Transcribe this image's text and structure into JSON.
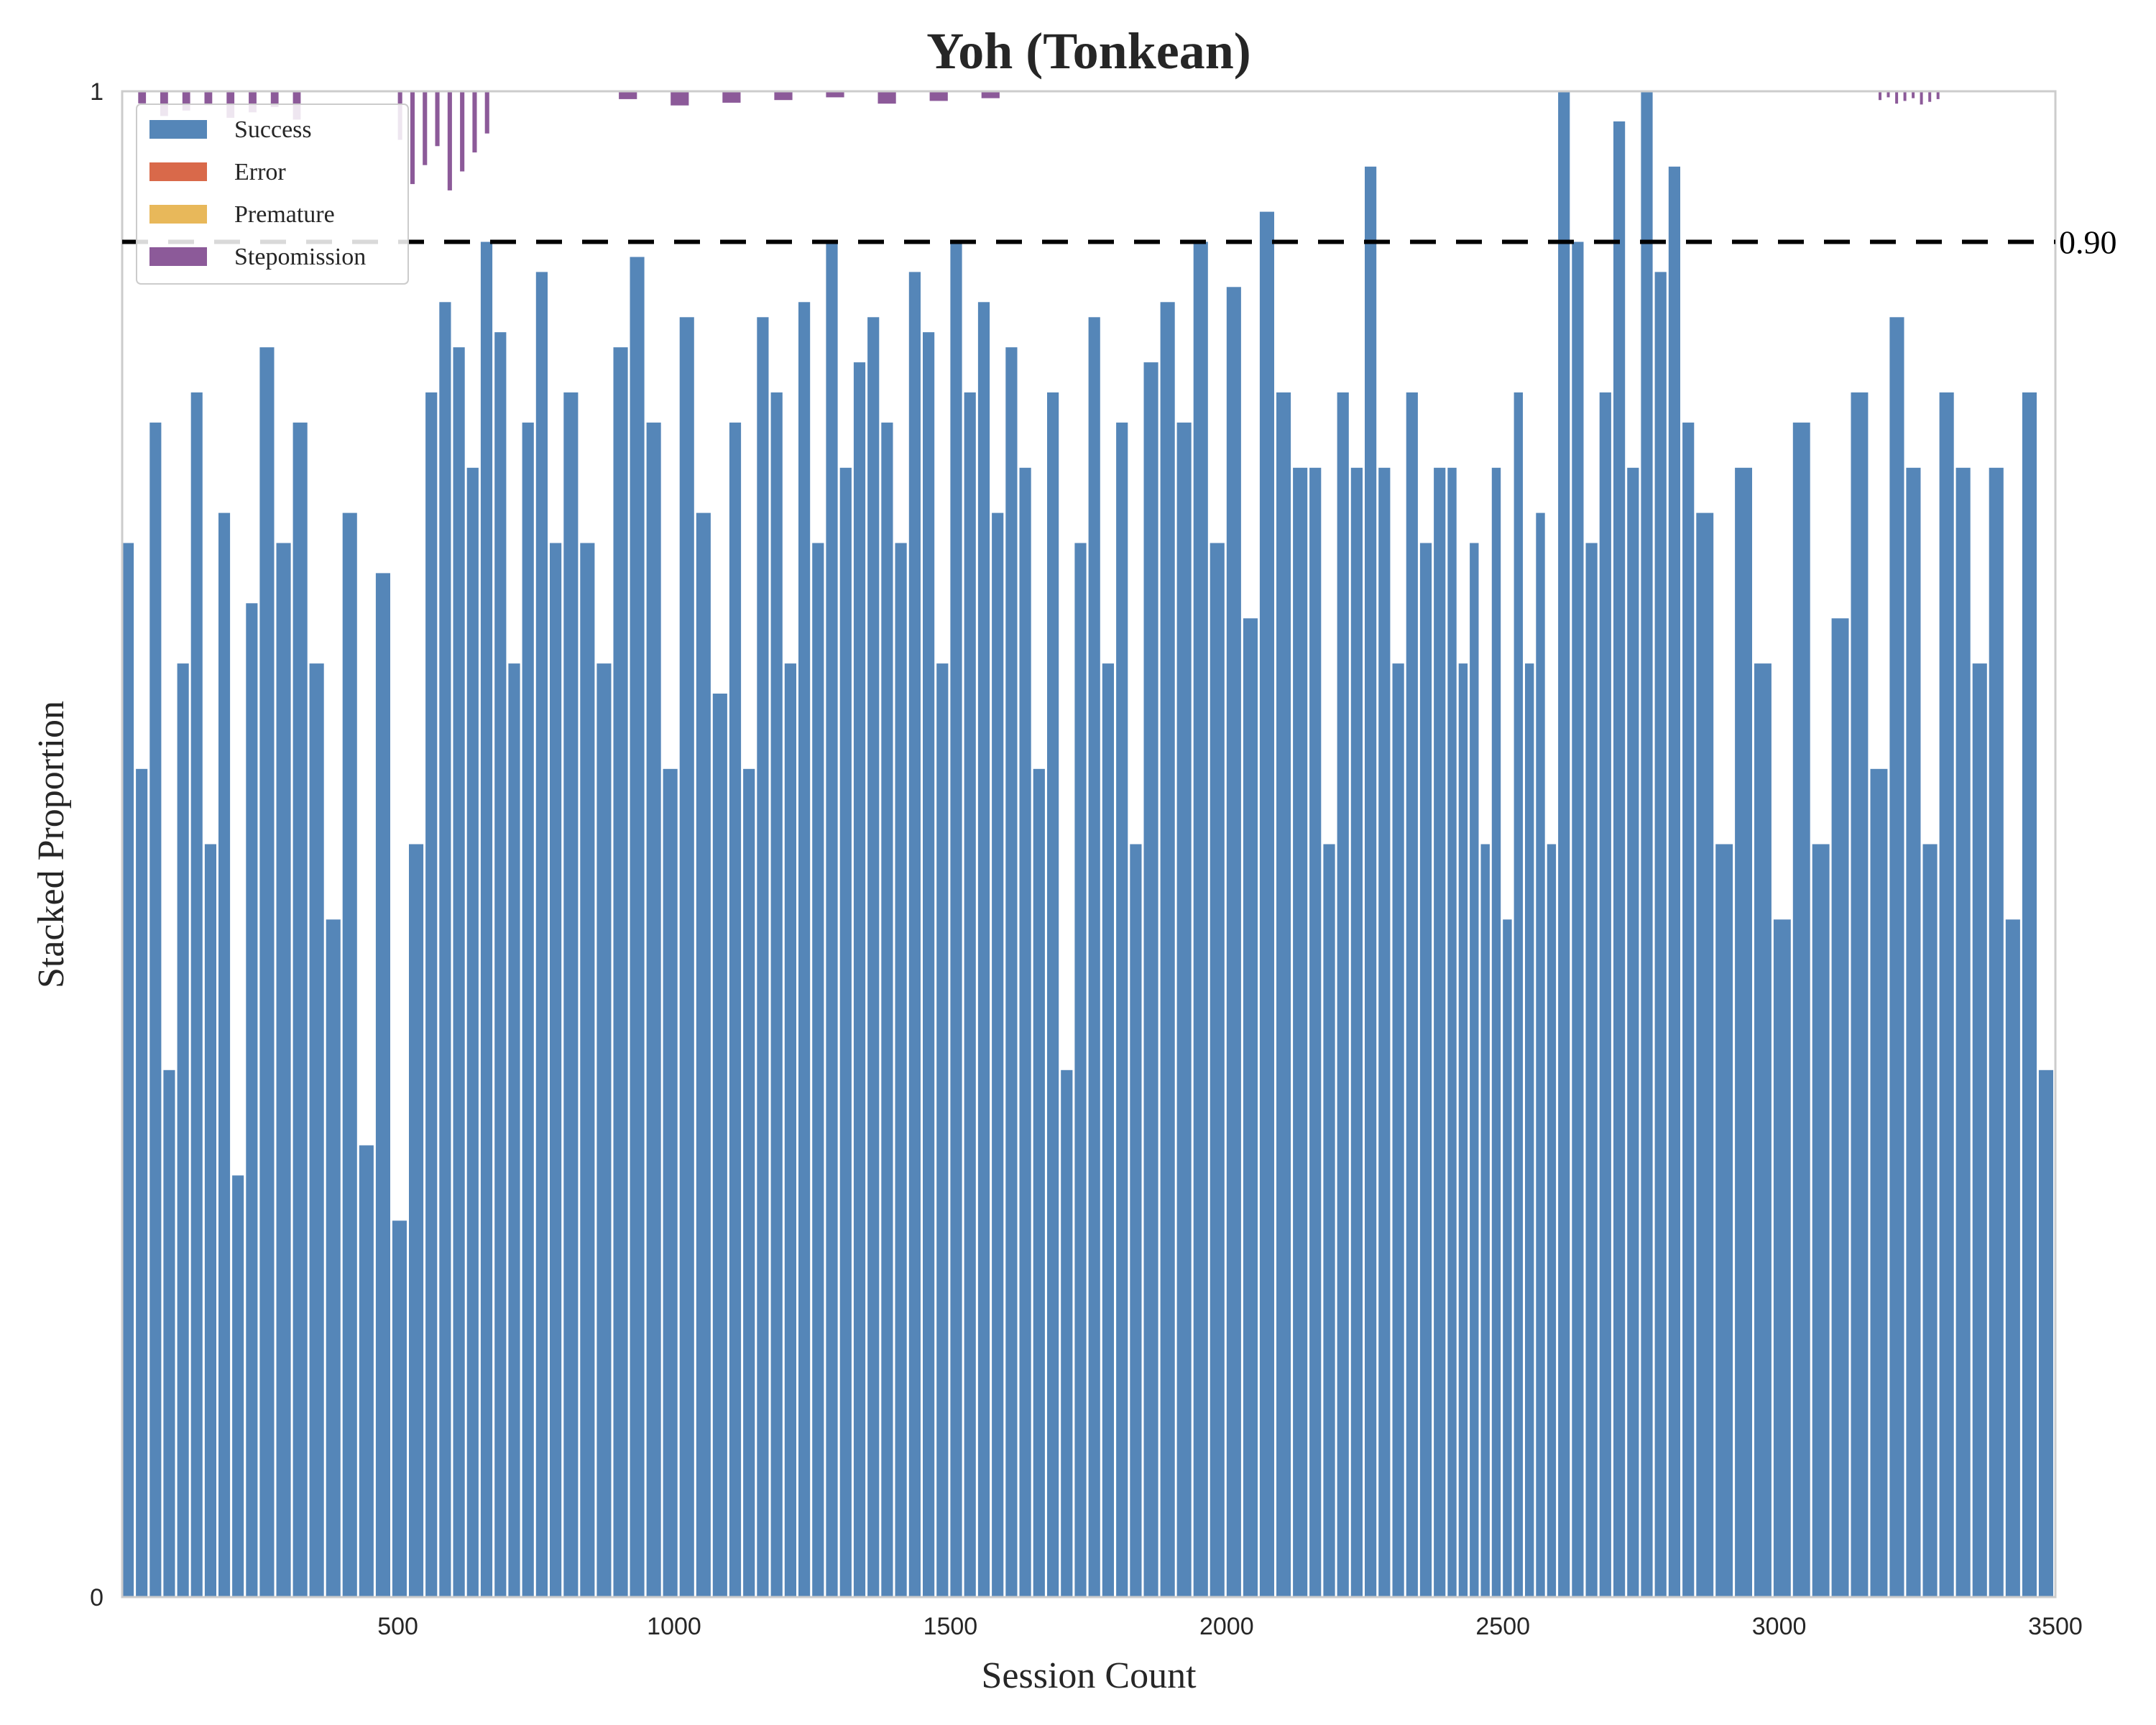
{
  "chart_data": {
    "type": "bar",
    "stacked": true,
    "title": "Yoh (Tonkean)",
    "xlabel": "Session Count",
    "ylabel": "Stacked Proportion",
    "xlim": [
      1,
      3500
    ],
    "ylim": [
      0,
      1
    ],
    "x_ticks": [
      500,
      1000,
      1500,
      2000,
      2500,
      3000,
      3500
    ],
    "y_tick_labels": [
      "0",
      "1"
    ],
    "grid": false,
    "legend_position": "top-left",
    "reference_line": {
      "y": 0.9,
      "label": "0.90",
      "style": "dashed",
      "color": "#000000"
    },
    "series": [
      {
        "name": "Success",
        "color": "#5586b8"
      },
      {
        "name": "Error",
        "color": "#d9694a"
      },
      {
        "name": "Premature",
        "color": "#e8b85a"
      },
      {
        "name": "Stepomission",
        "color": "#8c5a99"
      }
    ],
    "segments": [
      {
        "x_start": 1,
        "x_end": 250,
        "values": [
          0.7,
          0.55,
          0.78,
          0.35,
          0.62,
          0.8,
          0.5,
          0.72,
          0.28,
          0.66
        ]
      },
      {
        "x_start": 250,
        "x_end": 550,
        "values": [
          0.83,
          0.7,
          0.78,
          0.62,
          0.45,
          0.72,
          0.3,
          0.68,
          0.25,
          0.5
        ]
      },
      {
        "x_start": 550,
        "x_end": 800,
        "values": [
          0.8,
          0.86,
          0.83,
          0.75,
          0.9,
          0.84,
          0.62,
          0.78,
          0.88,
          0.7
        ]
      },
      {
        "x_start": 800,
        "x_end": 1100,
        "values": [
          0.8,
          0.7,
          0.62,
          0.83,
          0.89,
          0.78,
          0.55,
          0.85,
          0.72,
          0.6
        ]
      },
      {
        "x_start": 1100,
        "x_end": 1350,
        "values": [
          0.78,
          0.55,
          0.85,
          0.8,
          0.62,
          0.86,
          0.7,
          0.9,
          0.75,
          0.82
        ]
      },
      {
        "x_start": 1350,
        "x_end": 1600,
        "values": [
          0.85,
          0.78,
          0.7,
          0.88,
          0.84,
          0.62,
          0.9,
          0.8,
          0.86,
          0.72
        ]
      },
      {
        "x_start": 1600,
        "x_end": 1850,
        "values": [
          0.83,
          0.75,
          0.55,
          0.8,
          0.35,
          0.7,
          0.85,
          0.62,
          0.78,
          0.5
        ]
      },
      {
        "x_start": 1850,
        "x_end": 2150,
        "values": [
          0.82,
          0.86,
          0.78,
          0.9,
          0.7,
          0.87,
          0.65,
          0.92,
          0.8,
          0.75
        ]
      },
      {
        "x_start": 2150,
        "x_end": 2400,
        "values": [
          0.75,
          0.5,
          0.8,
          0.75,
          0.95,
          0.75,
          0.62,
          0.8,
          0.7,
          0.75
        ]
      },
      {
        "x_start": 2400,
        "x_end": 2600,
        "values": [
          0.75,
          0.62,
          0.7,
          0.5,
          0.75,
          0.45,
          0.8,
          0.62,
          0.72,
          0.5
        ]
      },
      {
        "x_start": 2600,
        "x_end": 2850,
        "values": [
          1.0,
          0.9,
          0.7,
          0.8,
          0.98,
          0.75,
          1.0,
          0.88,
          0.95,
          0.78
        ]
      },
      {
        "x_start": 2850,
        "x_end": 3200,
        "values": [
          0.72,
          0.5,
          0.75,
          0.62,
          0.45,
          0.78,
          0.5,
          0.65,
          0.8,
          0.55
        ]
      },
      {
        "x_start": 3200,
        "x_end": 3500,
        "values": [
          0.85,
          0.75,
          0.5,
          0.8,
          0.75,
          0.62,
          0.75,
          0.45,
          0.8,
          0.35
        ]
      }
    ],
    "stepomission_regions": [
      {
        "x_start": 30,
        "x_end": 350,
        "max": 0.02
      },
      {
        "x_start": 500,
        "x_end": 680,
        "max": 0.07
      },
      {
        "x_start": 900,
        "x_end": 1650,
        "max": 0.01
      },
      {
        "x_start": 3180,
        "x_end": 3300,
        "max": 0.01
      }
    ]
  }
}
